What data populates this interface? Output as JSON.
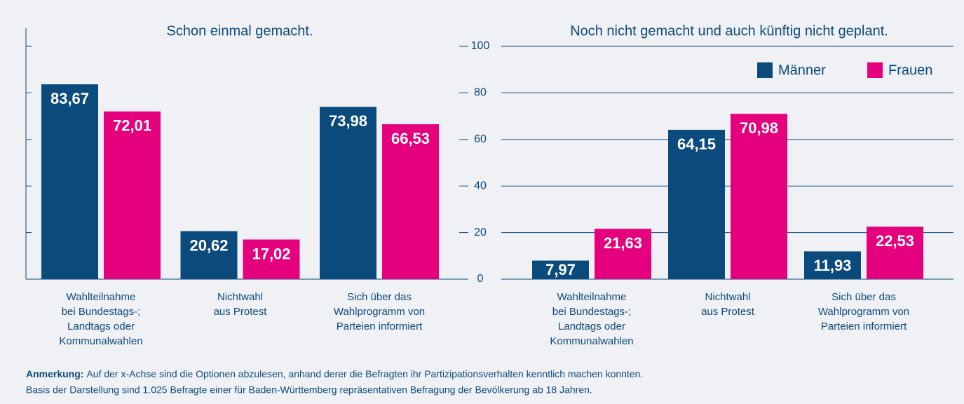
{
  "chart_data": [
    {
      "type": "bar",
      "title": "Schon einmal gemacht.",
      "categories": [
        [
          "Wahlteilnahme",
          "bei Bundestags-;",
          "Landtags oder",
          "Kommunalwahlen"
        ],
        [
          "Nichtwahl",
          "aus Protest"
        ],
        [
          "Sich über das",
          "Wahlprogramm von",
          "Parteien informiert"
        ]
      ],
      "series": [
        {
          "color": "#0b4a7d",
          "values": [
            83.67,
            20.62,
            73.98
          ],
          "value_labels": [
            "83,67",
            "20,62",
            "73,98"
          ]
        },
        {
          "color": "#e5007d",
          "values": [
            72.01,
            17.02,
            66.53
          ],
          "value_labels": [
            "72,01",
            "17,02",
            "66,53"
          ]
        }
      ],
      "ylim": [
        0,
        100
      ],
      "yticks": [
        0,
        20,
        40,
        60,
        80,
        100
      ]
    },
    {
      "type": "bar",
      "title": "Noch nicht gemacht und auch künftig nicht geplant.",
      "categories": [
        [
          "Wahlteilnahme",
          "bei Bundestags-;",
          "Landtags oder",
          "Kommunalwahlen"
        ],
        [
          "Nichtwahl",
          "aus Protest"
        ],
        [
          "Sich über das",
          "Wahlprogramm von",
          "Parteien informiert"
        ]
      ],
      "series": [
        {
          "name": "Männer",
          "color": "#0b4a7d",
          "values": [
            7.97,
            64.15,
            11.93
          ],
          "value_labels": [
            "7,97",
            "64,15",
            "11,93"
          ]
        },
        {
          "name": "Frauen",
          "color": "#e5007d",
          "values": [
            21.63,
            70.98,
            22.53
          ],
          "value_labels": [
            "21,63",
            "70,98",
            "22,53"
          ]
        }
      ],
      "ylim": [
        0,
        100
      ],
      "yticks": [
        0,
        20,
        40,
        60,
        80,
        100
      ],
      "grid": true,
      "legend": "top-right"
    }
  ],
  "note": {
    "label": "Anmerkung:",
    "lines": [
      "Auf der x-Achse sind die Optionen abzulesen, anhand derer die Befragten ihr Partizipationsverhalten kenntlich machen konnten.",
      "Basis der Darstellung sind 1.025 Befragte einer für Baden-Württemberg repräsentativen Befragung der Bevölkerung ab 18 Jahren."
    ]
  }
}
